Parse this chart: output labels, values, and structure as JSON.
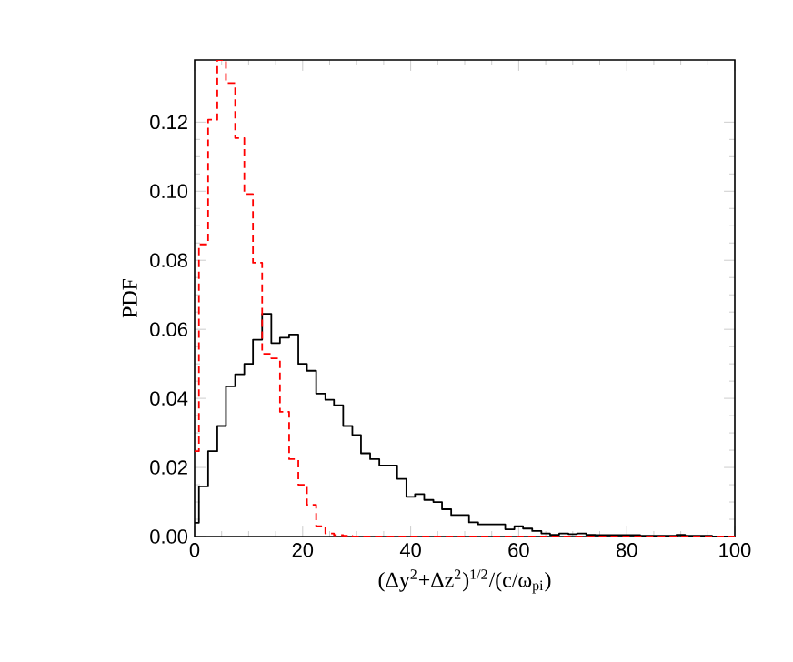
{
  "chart_data": {
    "type": "histogram",
    "xlabel": "(Δy$^{2}$+Δz$^{2}$)$^{1/2}$/(c/ω$_{pi}$)",
    "ylabel": "PDF",
    "bins": [
      0,
      0.8,
      2.5,
      4.2,
      5.8,
      7.5,
      9.2,
      10.8,
      12.5,
      14.2,
      15.8,
      17.5,
      19.2,
      20.8,
      22.5,
      24.2,
      25.8,
      27.5,
      29.2,
      30.8,
      32.5,
      34.2,
      35.8,
      37.5,
      39.2,
      40.8,
      42.5,
      44.2,
      45.8,
      47.5,
      49.2,
      50.8,
      52.5,
      54.2,
      55.8,
      57.5,
      59.2,
      60.8,
      62.5,
      64.2,
      65.8,
      67.5,
      69.2,
      70.8,
      72.5,
      74.2,
      75.8,
      77.5,
      79.2,
      80.8,
      82.5,
      84.2,
      85.8,
      87.5,
      89.2,
      90.8,
      92.5,
      94.2,
      95.8,
      97.5,
      99.2,
      100
    ],
    "series": [
      {
        "color": "#000000",
        "line_style": "solid",
        "values": [
          0.004,
          0.0145,
          0.0247,
          0.032,
          0.0435,
          0.047,
          0.05,
          0.057,
          0.0645,
          0.056,
          0.0576,
          0.0585,
          0.05,
          0.048,
          0.0414,
          0.0396,
          0.038,
          0.032,
          0.0294,
          0.0241,
          0.0224,
          0.0206,
          0.0206,
          0.0167,
          0.0115,
          0.0123,
          0.0106,
          0.01,
          0.0079,
          0.0062,
          0.0062,
          0.0041,
          0.0035,
          0.0035,
          0.0035,
          0.0021,
          0.003,
          0.0023,
          0.0016,
          0.0009,
          0.0005,
          0.0009,
          0.0007,
          0.0009,
          0.0005,
          0.0004,
          0.0004,
          0.0004,
          0.0004,
          0.0004,
          0.0002,
          0.0002,
          0.0002,
          0.0002,
          0.0005,
          0.0002,
          0.0002,
          0.0002,
          0,
          0,
          0
        ]
      },
      {
        "color": "#ff0000",
        "line_style": "dashed",
        "values": [
          0.0247,
          0.0846,
          0.1207,
          0.138,
          0.1313,
          0.1154,
          0.0992,
          0.0793,
          0.0529,
          0.0516,
          0.0361,
          0.0224,
          0.015,
          0.0092,
          0.003,
          0.0009,
          0.0004,
          0.0002,
          0,
          0,
          0,
          0,
          0,
          0,
          0,
          0,
          0,
          0,
          0,
          0,
          0,
          0,
          0,
          0,
          0,
          0,
          0,
          0,
          0,
          0,
          0,
          0,
          0,
          0,
          0,
          0,
          0,
          0,
          0,
          0,
          0,
          0,
          0,
          0,
          0,
          0,
          0,
          0,
          0,
          0,
          0
        ]
      }
    ],
    "xlim": [
      0,
      100
    ],
    "ylim": [
      0,
      0.138
    ],
    "xticks": [
      0,
      20,
      40,
      60,
      80,
      100
    ],
    "yticks": [
      {
        "value": 0,
        "label": "0.00"
      },
      {
        "value": 0.02,
        "label": "0.02"
      },
      {
        "value": 0.04,
        "label": "0.04"
      },
      {
        "value": 0.06,
        "label": "0.06"
      },
      {
        "value": 0.08,
        "label": "0.08"
      },
      {
        "value": 0.1,
        "label": "0.10"
      },
      {
        "value": 0.12,
        "label": "0.12"
      }
    ]
  }
}
